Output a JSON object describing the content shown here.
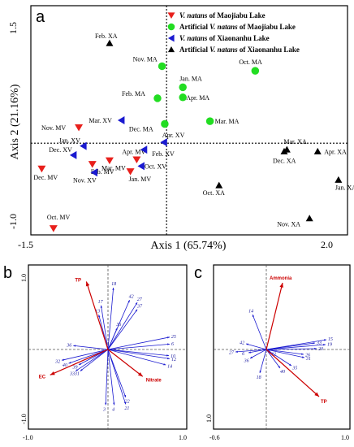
{
  "chart_data": [
    {
      "type": "scatter",
      "panel_label": "a",
      "xlabel": "Axis 1 (65.74%)",
      "ylabel": "Axis 2 (21.16%)",
      "xlim": [
        -1.5,
        2.0
      ],
      "ylim": [
        -1.0,
        1.5
      ],
      "x_ticks": [
        "-1.5",
        "2.0"
      ],
      "y_ticks": [
        "1.5",
        "-1.0"
      ],
      "legend": [
        {
          "marker": "triangle-down",
          "color": "#e8201c",
          "name_italic": "V. natans",
          "name_rest": " of Maojiabu Lake"
        },
        {
          "marker": "circle",
          "color": "#22dd22",
          "name_prefix": "Artificial ",
          "name_italic": "V. natans",
          "name_rest": " of Maojiabu Lake"
        },
        {
          "marker": "triangle-left",
          "color": "#1a1ad0",
          "name_italic": "V. natans",
          "name_rest": " of Xiaonanhu Lake"
        },
        {
          "marker": "triangle-up",
          "color": "#000000",
          "name_prefix": "Artificial ",
          "name_italic": "V. natans",
          "name_rest": " of  Xiaonanhu Lake"
        }
      ],
      "series": [
        {
          "group": "MV",
          "marker": "triangle-down",
          "color": "#e8201c",
          "points": [
            {
              "label": "Nov. MV",
              "x": -0.97,
              "y": 0.17
            },
            {
              "label": "Dec. MV",
              "x": -1.38,
              "y": -0.28
            },
            {
              "label": "Feb. MV",
              "x": -0.82,
              "y": -0.23
            },
            {
              "label": "Mar. MV",
              "x": -0.63,
              "y": -0.19
            },
            {
              "label": "Apr. MV",
              "x": -0.33,
              "y": -0.18
            },
            {
              "label": "Jan. MV",
              "x": -0.4,
              "y": -0.31
            },
            {
              "label": "Oct. MV",
              "x": -1.25,
              "y": -0.93
            }
          ]
        },
        {
          "group": "MA",
          "marker": "circle",
          "color": "#22dd22",
          "points": [
            {
              "label": "Nov. MA",
              "x": -0.05,
              "y": 0.84
            },
            {
              "label": "Oct. MA",
              "x": 0.98,
              "y": 0.79
            },
            {
              "label": "Jan. MA",
              "x": 0.18,
              "y": 0.61
            },
            {
              "label": "Feb. MA",
              "x": -0.1,
              "y": 0.49
            },
            {
              "label": "Apr. MA",
              "x": 0.18,
              "y": 0.5
            },
            {
              "label": "Mar. MA",
              "x": 0.48,
              "y": 0.24
            },
            {
              "label": "Dec. MA",
              "x": -0.02,
              "y": 0.21
            }
          ]
        },
        {
          "group": "XV",
          "marker": "triangle-left",
          "color": "#1a1ad0",
          "points": [
            {
              "label": "Mar. XV",
              "x": -0.5,
              "y": 0.25
            },
            {
              "label": "Jan. XV",
              "x": -0.92,
              "y": -0.03
            },
            {
              "label": "Dec. XV",
              "x": -1.03,
              "y": -0.13
            },
            {
              "label": "Nov. XV",
              "x": -0.8,
              "y": -0.32
            },
            {
              "label": "Apr. XV",
              "x": -0.03,
              "y": 0.01
            },
            {
              "label": "Feb. XV",
              "x": -0.25,
              "y": -0.07
            },
            {
              "label": "Oct. XV",
              "x": -0.28,
              "y": -0.25
            }
          ]
        },
        {
          "group": "XA",
          "marker": "triangle-up",
          "color": "#000000",
          "points": [
            {
              "label": "Feb. XA",
              "x": -0.63,
              "y": 1.09
            },
            {
              "label": "Mar. XA",
              "x": 1.33,
              "y": -0.07
            },
            {
              "label": "Dec. XA",
              "x": 1.3,
              "y": -0.09
            },
            {
              "label": "Apr. XA",
              "x": 1.67,
              "y": -0.09
            },
            {
              "label": "Oct. XA",
              "x": 0.58,
              "y": -0.46
            },
            {
              "label": "Jan. XA",
              "x": 1.9,
              "y": -0.4
            },
            {
              "label": "Nov. XA",
              "x": 1.58,
              "y": -0.82
            }
          ]
        }
      ]
    },
    {
      "type": "biplot",
      "panel_label": "b",
      "x_ticks": [
        "-1.0",
        "1.0"
      ],
      "y_ticks": [
        "1.0",
        "-1.0"
      ],
      "env_vectors": [
        {
          "label": "TP",
          "x": -0.28,
          "y": 0.88
        },
        {
          "label": "EC",
          "x": -0.75,
          "y": -0.33
        },
        {
          "label": "Nitrate",
          "x": 0.45,
          "y": -0.35
        }
      ],
      "species_vectors": [
        {
          "label": "18",
          "x": 0.07,
          "y": 0.8
        },
        {
          "label": "42",
          "x": 0.28,
          "y": 0.64
        },
        {
          "label": "27",
          "x": 0.38,
          "y": 0.61
        },
        {
          "label": "37",
          "x": 0.38,
          "y": 0.52
        },
        {
          "label": "17",
          "x": -0.09,
          "y": 0.57
        },
        {
          "label": "13",
          "x": -0.12,
          "y": 0.45
        },
        {
          "label": "35",
          "x": 0.12,
          "y": 0.28
        },
        {
          "label": "36",
          "x": -0.45,
          "y": 0.05
        },
        {
          "label": "25",
          "x": 0.8,
          "y": 0.16
        },
        {
          "label": "6",
          "x": 0.8,
          "y": 0.07
        },
        {
          "label": "10",
          "x": 0.79,
          "y": -0.08
        },
        {
          "label": "12",
          "x": 0.8,
          "y": -0.12
        },
        {
          "label": "14",
          "x": 0.75,
          "y": -0.2
        },
        {
          "label": "32",
          "x": -0.6,
          "y": -0.14
        },
        {
          "label": "40",
          "x": -0.51,
          "y": -0.18
        },
        {
          "label": "39",
          "x": -0.38,
          "y": -0.2
        },
        {
          "label": "33",
          "x": -0.42,
          "y": -0.28
        },
        {
          "label": "31",
          "x": -0.36,
          "y": -0.28
        },
        {
          "label": "3",
          "x": -0.03,
          "y": -0.72
        },
        {
          "label": "4",
          "x": 0.08,
          "y": -0.72
        },
        {
          "label": "22",
          "x": 0.23,
          "y": -0.62
        },
        {
          "label": "21",
          "x": 0.23,
          "y": -0.71
        }
      ]
    },
    {
      "type": "biplot",
      "panel_label": "c",
      "x_ticks": [
        "-0.6",
        "1.0"
      ],
      "y_ticks": [
        "1.0"
      ],
      "env_vectors": [
        {
          "label": "Ammonia",
          "x": 0.2,
          "y": 0.82
        },
        {
          "label": "TP",
          "x": 0.65,
          "y": -0.58
        }
      ],
      "species_vectors": [
        {
          "label": "14",
          "x": -0.17,
          "y": 0.43
        },
        {
          "label": "42",
          "x": -0.25,
          "y": 0.07
        },
        {
          "label": "27",
          "x": -0.38,
          "y": -0.03
        },
        {
          "label": "6",
          "x": -0.22,
          "y": -0.04
        },
        {
          "label": "36",
          "x": -0.2,
          "y": -0.11
        },
        {
          "label": "18",
          "x": -0.08,
          "y": -0.29
        },
        {
          "label": "12",
          "x": 0.05,
          "y": -0.03
        },
        {
          "label": "15",
          "x": 0.74,
          "y": 0.12
        },
        {
          "label": "19",
          "x": 0.73,
          "y": 0.06
        },
        {
          "label": "33",
          "x": 0.6,
          "y": 0.08
        },
        {
          "label": "20",
          "x": 0.62,
          "y": 0.01
        },
        {
          "label": "26",
          "x": 0.46,
          "y": -0.06
        },
        {
          "label": "31",
          "x": 0.47,
          "y": -0.1
        },
        {
          "label": "35",
          "x": 0.31,
          "y": -0.2
        },
        {
          "label": "40",
          "x": 0.17,
          "y": -0.23
        }
      ]
    }
  ]
}
